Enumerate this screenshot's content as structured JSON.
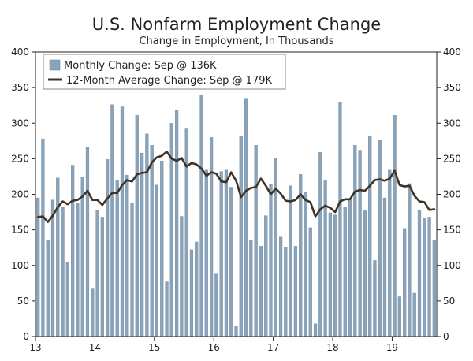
{
  "chart_data": {
    "type": "bar+line",
    "title": "U.S. Nonfarm Employment Change",
    "subtitle": "Change in Employment, In Thousands",
    "ylim": [
      0,
      400
    ],
    "yticks": [
      0,
      50,
      100,
      150,
      200,
      250,
      300,
      350,
      400
    ],
    "x_tick_labels": [
      "13",
      "14",
      "15",
      "16",
      "17",
      "18",
      "19"
    ],
    "legend_placement": "top-left",
    "colors": {
      "bar": "#8aa3b9",
      "bar_edge": "#5f7f99",
      "line": "#3e3326"
    },
    "series": [
      {
        "name": "Monthly Change: Sep @ 136K",
        "type": "bar",
        "values": [
          195,
          278,
          135,
          192,
          223,
          182,
          105,
          241,
          188,
          224,
          266,
          67,
          177,
          168,
          249,
          326,
          220,
          323,
          227,
          187,
          311,
          258,
          285,
          269,
          213,
          247,
          77,
          300,
          318,
          169,
          292,
          122,
          133,
          339,
          234,
          280,
          89,
          232,
          234,
          210,
          15,
          282,
          335,
          135,
          269,
          127,
          170,
          214,
          251,
          140,
          126,
          212,
          127,
          228,
          203,
          153,
          18,
          259,
          219,
          174,
          171,
          330,
          182,
          192,
          269,
          262,
          177,
          282,
          107,
          276,
          195,
          234,
          311,
          56,
          152,
          215,
          61,
          178,
          166,
          168,
          136
        ]
      },
      {
        "name": "12-Month Average Change: Sep @ 179K",
        "type": "line",
        "values": [
          168,
          169,
          161,
          170,
          182,
          190,
          186,
          191,
          192,
          197,
          205,
          192,
          192,
          185,
          194,
          202,
          202,
          213,
          220,
          218,
          228,
          230,
          231,
          245,
          252,
          254,
          260,
          250,
          247,
          251,
          239,
          244,
          242,
          236,
          226,
          231,
          229,
          218,
          217,
          231,
          219,
          196,
          205,
          209,
          210,
          222,
          212,
          200,
          208,
          201,
          191,
          190,
          192,
          200,
          192,
          189,
          169,
          179,
          184,
          181,
          175,
          190,
          193,
          193,
          204,
          206,
          205,
          212,
          220,
          221,
          219,
          222,
          233,
          213,
          211,
          212,
          198,
          190,
          189,
          178,
          179
        ]
      }
    ]
  }
}
